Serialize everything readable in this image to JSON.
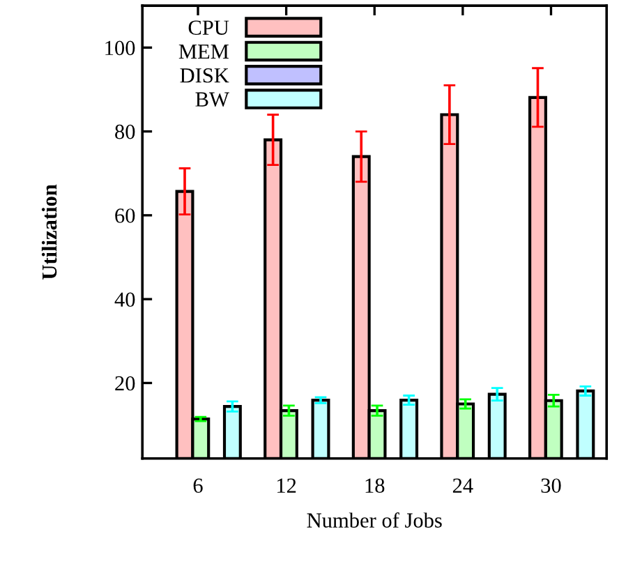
{
  "chart_data": {
    "type": "bar",
    "xlabel": "Number of Jobs",
    "ylabel": "Utilization",
    "categories": [
      "6",
      "12",
      "18",
      "24",
      "30"
    ],
    "series": [
      {
        "name": "CPU",
        "color": "#ffc0c0",
        "values": [
          65.7,
          78,
          74,
          84,
          88.1
        ],
        "errors": [
          5.5,
          6,
          6,
          7,
          7
        ]
      },
      {
        "name": "MEM",
        "color": "#c0ffc0",
        "values": [
          11.4,
          13.4,
          13.4,
          15,
          15.8
        ],
        "errors": [
          0.5,
          1.2,
          1.2,
          1.1,
          1.4
        ]
      },
      {
        "name": "DISK",
        "color": "#c0c0ff",
        "values": [
          null,
          null,
          null,
          null,
          null
        ]
      },
      {
        "name": "BW",
        "color": "#c0ffff",
        "values": [
          14.4,
          15.9,
          15.9,
          17.3,
          18.1
        ],
        "errors": [
          1.2,
          0.7,
          1.1,
          1.5,
          1.1
        ]
      }
    ],
    "ylim": [
      2,
      110
    ],
    "yticks": [
      20,
      40,
      60,
      80,
      100
    ],
    "grid": false,
    "legend": "top left"
  }
}
